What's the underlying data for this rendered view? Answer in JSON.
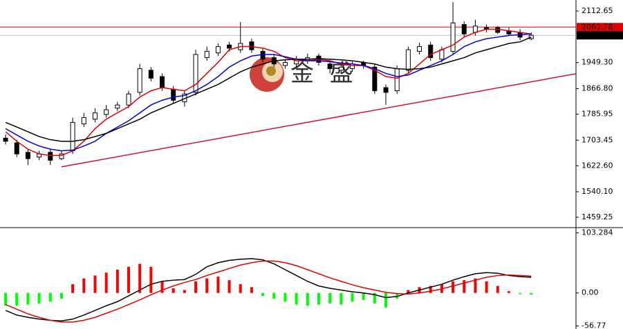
{
  "chart_data": [
    {
      "type": "candlestick",
      "xlim": [
        -0.5,
        51
      ],
      "ylim": [
        1426.5,
        2147.6
      ],
      "yticks": [
        2112.65,
        {
          "value": 1949.3,
          "label": "1949.30"
        },
        {
          "value": 1866.8,
          "label": "1866.80"
        },
        1785.95,
        1703.45,
        {
          "value": 1622.6,
          "label": "1622.60"
        },
        {
          "value": 1540.1,
          "label": "1540.10"
        },
        1459.25
      ],
      "open": [
        1710,
        1695,
        1665,
        1650,
        1665,
        1645,
        1670,
        1755,
        1770,
        1785,
        1805,
        1815,
        1855,
        1925,
        1905,
        1865,
        1825,
        1855,
        1965,
        1980,
        2005,
        1990,
        2015,
        1985,
        1965,
        1940,
        1945,
        1955,
        1970,
        1945,
        1925,
        1930,
        1948,
        1935,
        1870,
        1860,
        1925,
        1985,
        2005,
        1960,
        1985,
        2070,
        2045,
        2060,
        2060,
        2050,
        2045,
        2025
      ],
      "high": [
        1722,
        1705,
        1675,
        1670,
        1675,
        1670,
        1775,
        1790,
        1805,
        1815,
        1825,
        1860,
        1945,
        1935,
        1915,
        1875,
        1860,
        1990,
        2000,
        2010,
        2015,
        2078,
        2025,
        1995,
        1975,
        1960,
        1970,
        1978,
        1978,
        1955,
        1945,
        1955,
        1955,
        1945,
        1880,
        1940,
        2000,
        2012,
        2015,
        2000,
        2141,
        2080,
        2085,
        2070,
        2065,
        2060,
        2055,
        2045
      ],
      "low": [
        1690,
        1650,
        1625,
        1640,
        1625,
        1640,
        1660,
        1745,
        1760,
        1775,
        1795,
        1805,
        1845,
        1890,
        1860,
        1820,
        1810,
        1845,
        1955,
        1970,
        1985,
        1980,
        1980,
        1950,
        1935,
        1930,
        1935,
        1945,
        1940,
        1915,
        1915,
        1920,
        1930,
        1850,
        1815,
        1850,
        1915,
        1975,
        1955,
        1950,
        1975,
        2030,
        2035,
        2045,
        2040,
        2035,
        2020,
        2020
      ],
      "close": [
        1700,
        1660,
        1645,
        1660,
        1640,
        1660,
        1760,
        1775,
        1790,
        1800,
        1815,
        1850,
        1930,
        1900,
        1870,
        1830,
        1850,
        1975,
        1985,
        2000,
        1995,
        2010,
        1990,
        1960,
        1945,
        1950,
        1960,
        1965,
        1950,
        1930,
        1935,
        1945,
        1940,
        1860,
        1855,
        1930,
        1990,
        2000,
        1965,
        1990,
        2075,
        2040,
        2065,
        2055,
        2045,
        2040,
        2030,
        2035.73
      ],
      "series": [
        {
          "color": "#e00000",
          "values": [
            1730,
            1700,
            1675,
            1660,
            1655,
            1655,
            1670,
            1700,
            1740,
            1770,
            1790,
            1810,
            1840,
            1860,
            1870,
            1865,
            1860,
            1880,
            1915,
            1950,
            1990,
            2000,
            2000,
            1995,
            1985,
            1965,
            1955,
            1955,
            1960,
            1955,
            1945,
            1940,
            1940,
            1925,
            1905,
            1900,
            1915,
            1945,
            1975,
            1990,
            2005,
            2030,
            2045,
            2055,
            2055,
            2050,
            2045,
            2040
          ]
        },
        {
          "color": "#0000e0",
          "values": [
            1740,
            1720,
            1700,
            1685,
            1675,
            1670,
            1672,
            1685,
            1700,
            1725,
            1745,
            1765,
            1790,
            1815,
            1830,
            1840,
            1845,
            1860,
            1880,
            1905,
            1935,
            1955,
            1970,
            1975,
            1975,
            1968,
            1960,
            1955,
            1955,
            1952,
            1948,
            1945,
            1940,
            1930,
            1915,
            1905,
            1910,
            1925,
            1940,
            1955,
            1975,
            2000,
            2015,
            2025,
            2030,
            2035,
            2038,
            2040
          ]
        },
        {
          "color": "#000000",
          "values": [
            1760,
            1745,
            1730,
            1715,
            1705,
            1700,
            1700,
            1705,
            1715,
            1725,
            1740,
            1755,
            1770,
            1790,
            1805,
            1820,
            1835,
            1850,
            1865,
            1880,
            1900,
            1920,
            1935,
            1945,
            1955,
            1958,
            1960,
            1960,
            1962,
            1960,
            1958,
            1955,
            1950,
            1945,
            1935,
            1930,
            1928,
            1930,
            1935,
            1945,
            1955,
            1965,
            1980,
            1990,
            2000,
            2010,
            2015,
            2030
          ]
        }
      ],
      "hlines": [
        {
          "value": 2061.78,
          "color": "#e00000"
        },
        {
          "value": 2035.73,
          "color": "#c0c0c0"
        }
      ],
      "trendline": {
        "x": [
          5,
          51
        ],
        "y": [
          1619,
          1914
        ],
        "color": "#d0103a"
      },
      "watermark": "金 盛"
    },
    {
      "type": "macd",
      "xlim": [
        -0.5,
        51
      ],
      "ylim": [
        -62,
        110
      ],
      "yticks": [
        103.284,
        {
          "value": 0,
          "label": "0.00"
        },
        -56.77
      ],
      "positive_color": "#ff0000",
      "negative_color": "#00ff00",
      "histogram": [
        -22,
        -22,
        -20,
        -18,
        -15,
        -10,
        15,
        25,
        30,
        35,
        40,
        45,
        50,
        45,
        20,
        8,
        5,
        20,
        25,
        28,
        22,
        15,
        10,
        -5,
        -10,
        -15,
        -20,
        -22,
        -20,
        -18,
        -20,
        -15,
        -12,
        -18,
        -25,
        -10,
        5,
        10,
        12,
        15,
        20,
        22,
        25,
        20,
        12,
        3,
        -2,
        -3
      ],
      "series": [
        {
          "color": "#000000",
          "values": [
            -30,
            -38,
            -42,
            -45,
            -47,
            -48,
            -45,
            -38,
            -30,
            -22,
            -15,
            -5,
            5,
            15,
            20,
            22,
            23,
            32,
            45,
            52,
            56,
            58,
            59,
            57,
            50,
            40,
            30,
            20,
            12,
            8,
            5,
            2,
            0,
            -3,
            -8,
            -6,
            0,
            5,
            10,
            15,
            22,
            28,
            33,
            35,
            34,
            30,
            28,
            27
          ]
        },
        {
          "color": "#e00000",
          "values": [
            -20,
            -28,
            -36,
            -42,
            -47,
            -50,
            -50,
            -47,
            -42,
            -35,
            -28,
            -20,
            -12,
            -3,
            5,
            12,
            18,
            23,
            30,
            36,
            42,
            48,
            52,
            55,
            55,
            52,
            47,
            40,
            33,
            26,
            20,
            14,
            9,
            5,
            1,
            -1,
            -2,
            0,
            3,
            7,
            12,
            17,
            22,
            27,
            30,
            31,
            30,
            29
          ]
        }
      ]
    }
  ]
}
